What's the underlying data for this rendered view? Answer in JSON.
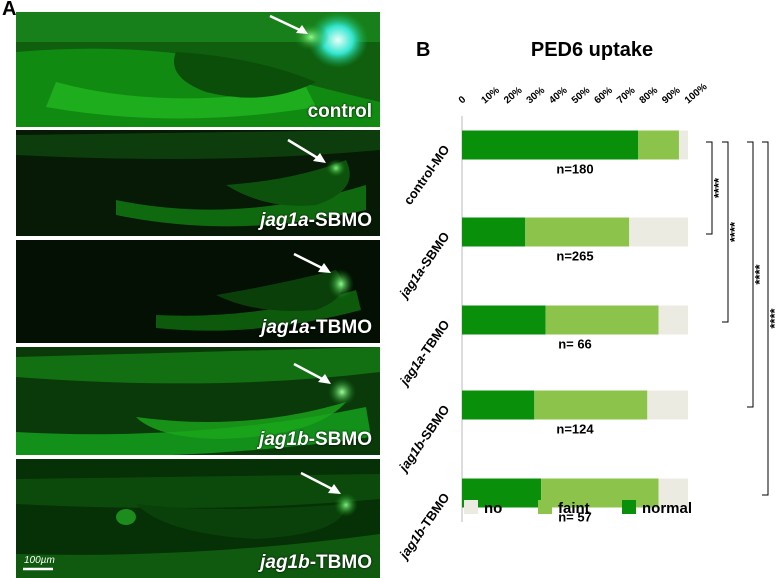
{
  "panel_a": {
    "letter": "A",
    "scale_bar": "100µm",
    "images": [
      {
        "prefix": "",
        "suffix": "control"
      },
      {
        "prefix": "jag1a",
        "suffix": "-SBMO"
      },
      {
        "prefix": "jag1a",
        "suffix": "-TBMO"
      },
      {
        "prefix": "jag1b",
        "suffix": "-SBMO"
      },
      {
        "prefix": "jag1b",
        "suffix": "-TBMO"
      }
    ]
  },
  "panel_b": {
    "letter": "B"
  },
  "chart_data": {
    "type": "bar",
    "orientation": "horizontal",
    "stacked": true,
    "title": "PED6 uptake",
    "x_ticks": [
      "0",
      "10%",
      "20%",
      "30%",
      "40%",
      "50%",
      "60%",
      "70%",
      "80%",
      "90%",
      "100%"
    ],
    "xlim": [
      0,
      100
    ],
    "categories": [
      {
        "prefix": "",
        "suffix": "control-MO"
      },
      {
        "prefix": "jag1a",
        "suffix": "-SBMO"
      },
      {
        "prefix": "jag1a",
        "suffix": "-TBMO"
      },
      {
        "prefix": "jag1b",
        "suffix": "-SBMO"
      },
      {
        "prefix": "jag1b",
        "suffix": "-TBMO"
      }
    ],
    "n_labels": [
      "n=180",
      "n=265",
      "n= 66",
      "n=124",
      "n= 57"
    ],
    "series": [
      {
        "name": "normal",
        "color": "#0a8f0a",
        "values": [
          78,
          28,
          37,
          32,
          35
        ]
      },
      {
        "name": "faint",
        "color": "#8cc34a",
        "values": [
          18,
          46,
          50,
          50,
          52
        ]
      },
      {
        "name": "no",
        "color": "#ecebe1",
        "values": [
          4,
          26,
          13,
          18,
          13
        ]
      }
    ],
    "legend_order": [
      "no",
      "faint",
      "normal"
    ],
    "legend_position": "bottom",
    "significance": [
      {
        "from": 0,
        "to": 1,
        "label": "****"
      },
      {
        "from": 0,
        "to": 2,
        "label": "****"
      },
      {
        "from": 0,
        "to": 3,
        "label": "****"
      },
      {
        "from": 0,
        "to": 4,
        "label": "****"
      }
    ],
    "grid": false
  }
}
